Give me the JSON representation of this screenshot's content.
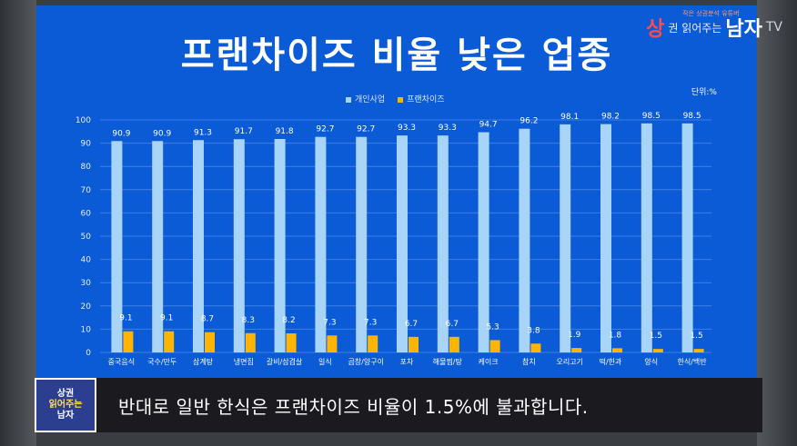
{
  "title": "프랜차이즈 비율 낮은 업종",
  "unit_label": "단위:%",
  "channel": {
    "part1": "상",
    "part2": "권 읽어주는",
    "part3": "남자",
    "tv": "TV",
    "tagline": "작은 상권분석 유튜버"
  },
  "caption": "반대로 일반 한식은 프랜차이즈 비율이 1.5%에 불과합니다.",
  "logo": {
    "line1": "상권",
    "line2": "읽어주는",
    "line3": "남자"
  },
  "colors": {
    "background": "#0b5ad6",
    "series1": "#a8d4f7",
    "series2": "#ffb400"
  },
  "chart_data": {
    "type": "bar",
    "title": "프랜차이즈 비율 낮은 업종",
    "ylim": [
      0,
      100
    ],
    "yticks": [
      0,
      10,
      20,
      30,
      40,
      50,
      60,
      70,
      80,
      90,
      100
    ],
    "grid": true,
    "legend": "top-center",
    "categories": [
      "중국음식",
      "국수/만두",
      "삼계탕",
      "냉면집",
      "갈비/삼겹살",
      "일식",
      "곱창/양구이",
      "포차",
      "해물찜/탕",
      "케이크",
      "참치",
      "오리고기",
      "떡/한과",
      "양식",
      "한식/백반"
    ],
    "series": [
      {
        "name": "개인사업",
        "values": [
          90.9,
          90.9,
          91.3,
          91.7,
          91.8,
          92.7,
          92.7,
          93.3,
          93.3,
          94.7,
          96.2,
          98.1,
          98.2,
          98.5,
          98.5
        ]
      },
      {
        "name": "프랜차이즈",
        "values": [
          9.1,
          9.1,
          8.7,
          8.3,
          8.2,
          7.3,
          7.3,
          6.7,
          6.7,
          5.3,
          3.8,
          1.9,
          1.8,
          1.5,
          1.5
        ]
      }
    ]
  }
}
